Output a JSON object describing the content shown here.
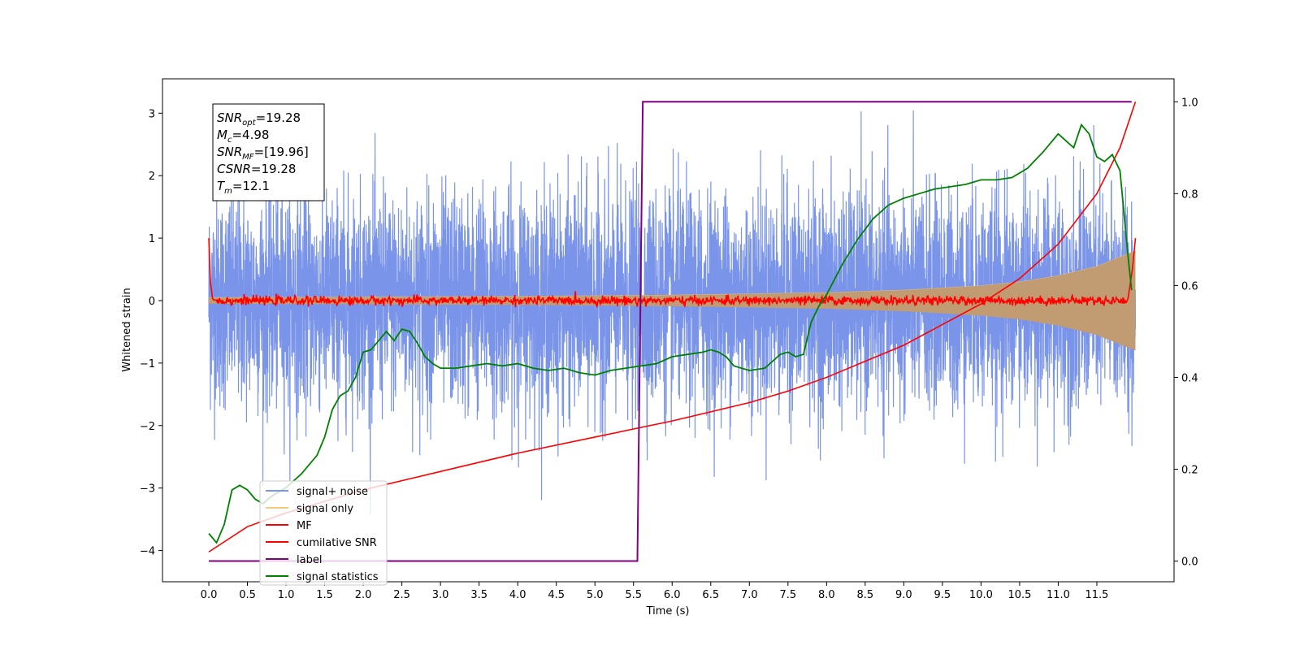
{
  "chart_data": {
    "type": "line",
    "xlabel": "Time (s)",
    "ylabel_left": "Whitened strain",
    "ylabel_right": "",
    "xlim": [
      -0.6,
      12.5
    ],
    "ylim_left": [
      -4.5,
      3.55
    ],
    "ylim_right": [
      -0.045,
      1.05
    ],
    "x_ticks": [
      0.0,
      0.5,
      1.0,
      1.5,
      2.0,
      2.5,
      3.0,
      3.5,
      4.0,
      4.5,
      5.0,
      5.5,
      6.0,
      6.5,
      7.0,
      7.5,
      8.0,
      8.5,
      9.0,
      9.5,
      10.0,
      10.5,
      11.0,
      11.5
    ],
    "x_tick_labels": [
      "0.0",
      "0.5",
      "1.0",
      "1.5",
      "2.0",
      "2.5",
      "3.0",
      "3.5",
      "4.0",
      "4.5",
      "5.0",
      "5.5",
      "6.0",
      "6.5",
      "7.0",
      "7.5",
      "8.0",
      "8.5",
      "9.0",
      "9.5",
      "10.0",
      "10.5",
      "11.0",
      "11.5"
    ],
    "y_ticks_left": [
      3,
      2,
      1,
      0,
      -1,
      -2,
      -3,
      -4
    ],
    "y_tick_labels_left": [
      "3",
      "2",
      "1",
      "0",
      "−1",
      "−2",
      "−3",
      "−4"
    ],
    "y_ticks_right": [
      1.0,
      0.8,
      0.6,
      0.4,
      0.2,
      0.0
    ],
    "y_tick_labels_right": [
      "1.0",
      "0.8",
      "0.6",
      "0.4",
      "0.2",
      "0.0"
    ],
    "grid": false,
    "legend_position": "lower-left",
    "colors": {
      "signal_noise": "#7994e8",
      "signal_only": "#f5c87e",
      "signal_fill": "#c19c72",
      "mf": "#ff0000",
      "cumulative_snr": "#ff0000",
      "label": "#800080",
      "statistics": "#008000"
    },
    "series": [
      {
        "name": "signal+ noise",
        "axis": "left",
        "style": "dense noise, roughly gaussian with sigma about 1, extremes -4.15 and 3.4",
        "x_range": [
          0.0,
          12.0
        ]
      },
      {
        "name": "signal only",
        "axis": "left",
        "style": "chirp oscillation with growing envelope",
        "envelope_x": [
          0.0,
          2.0,
          4.0,
          6.0,
          8.0,
          9.0,
          10.0,
          10.5,
          11.0,
          11.5,
          12.0
        ],
        "envelope_amplitude": [
          0.05,
          0.06,
          0.07,
          0.09,
          0.13,
          0.17,
          0.24,
          0.3,
          0.4,
          0.55,
          0.8
        ]
      },
      {
        "name": "MF",
        "axis": "left",
        "x": [
          0.0,
          0.02,
          0.05,
          0.1,
          0.5,
          1.0,
          2.0,
          4.0,
          6.0,
          8.0,
          10.0,
          11.0,
          11.9,
          11.96,
          12.0
        ],
        "y": [
          1.0,
          0.3,
          0.02,
          0.0,
          0.0,
          0.0,
          0.0,
          0.0,
          0.0,
          0.0,
          0.0,
          0.0,
          0.0,
          0.5,
          1.0
        ]
      },
      {
        "name": "cumilative SNR",
        "axis": "right",
        "x": [
          0.0,
          0.5,
          1.0,
          2.0,
          3.0,
          4.0,
          5.0,
          6.0,
          7.0,
          7.5,
          8.0,
          8.5,
          9.0,
          9.5,
          10.0,
          10.5,
          11.0,
          11.5,
          11.8,
          12.0
        ],
        "y": [
          0.02,
          0.075,
          0.105,
          0.155,
          0.195,
          0.235,
          0.27,
          0.305,
          0.345,
          0.37,
          0.4,
          0.435,
          0.47,
          0.515,
          0.56,
          0.615,
          0.69,
          0.8,
          0.9,
          1.0
        ]
      },
      {
        "name": "label",
        "axis": "right",
        "x": [
          0.0,
          5.55,
          5.62,
          11.95
        ],
        "y": [
          0.0,
          0.0,
          1.0,
          1.0
        ]
      },
      {
        "name": "signal statistics",
        "axis": "right",
        "x": [
          0.0,
          0.1,
          0.2,
          0.3,
          0.4,
          0.5,
          0.6,
          0.7,
          0.8,
          0.9,
          1.0,
          1.1,
          1.2,
          1.3,
          1.4,
          1.5,
          1.6,
          1.7,
          1.8,
          1.9,
          2.0,
          2.1,
          2.2,
          2.3,
          2.4,
          2.5,
          2.6,
          2.7,
          2.8,
          2.9,
          3.0,
          3.2,
          3.4,
          3.6,
          3.8,
          4.0,
          4.2,
          4.4,
          4.6,
          4.8,
          5.0,
          5.2,
          5.4,
          5.6,
          5.8,
          6.0,
          6.2,
          6.4,
          6.5,
          6.6,
          6.7,
          6.8,
          7.0,
          7.2,
          7.4,
          7.5,
          7.6,
          7.7,
          7.8,
          7.9,
          8.0,
          8.2,
          8.4,
          8.6,
          8.8,
          9.0,
          9.2,
          9.4,
          9.6,
          9.8,
          10.0,
          10.2,
          10.4,
          10.6,
          10.8,
          11.0,
          11.2,
          11.3,
          11.4,
          11.5,
          11.6,
          11.7,
          11.8,
          11.9,
          11.95
        ],
        "y": [
          0.06,
          0.04,
          0.08,
          0.155,
          0.165,
          0.155,
          0.135,
          0.125,
          0.14,
          0.15,
          0.16,
          0.175,
          0.19,
          0.21,
          0.23,
          0.27,
          0.33,
          0.36,
          0.37,
          0.4,
          0.455,
          0.46,
          0.48,
          0.5,
          0.48,
          0.505,
          0.5,
          0.475,
          0.445,
          0.43,
          0.42,
          0.42,
          0.425,
          0.43,
          0.425,
          0.43,
          0.42,
          0.415,
          0.42,
          0.41,
          0.405,
          0.415,
          0.42,
          0.425,
          0.43,
          0.445,
          0.45,
          0.455,
          0.46,
          0.455,
          0.445,
          0.425,
          0.415,
          0.42,
          0.45,
          0.455,
          0.445,
          0.45,
          0.52,
          0.555,
          0.58,
          0.645,
          0.7,
          0.745,
          0.775,
          0.79,
          0.8,
          0.81,
          0.815,
          0.82,
          0.83,
          0.83,
          0.835,
          0.855,
          0.89,
          0.93,
          0.9,
          0.95,
          0.93,
          0.88,
          0.87,
          0.885,
          0.85,
          0.67,
          0.59
        ]
      }
    ],
    "annotation_box": {
      "lines": [
        {
          "main": "SNR",
          "sub": "opt",
          "rest": "=19.28"
        },
        {
          "main": "M",
          "sub": "c",
          "rest": "=4.98"
        },
        {
          "main": "SNR",
          "sub": "MF",
          "rest": "=[19.96]"
        },
        {
          "main": "CSNR",
          "sub": "",
          "rest": "=19.28"
        },
        {
          "main": "T",
          "sub": "m",
          "rest": "=12.1"
        }
      ]
    },
    "legend": [
      {
        "label": "signal+ noise",
        "color": "#7994e8"
      },
      {
        "label": "signal only",
        "color": "#f5c87e"
      },
      {
        "label": "MF",
        "color": "#ff0000"
      },
      {
        "label": "cumilative SNR",
        "color": "#ff0000"
      },
      {
        "label": "label",
        "color": "#800080"
      },
      {
        "label": "signal statistics",
        "color": "#008000"
      }
    ]
  }
}
